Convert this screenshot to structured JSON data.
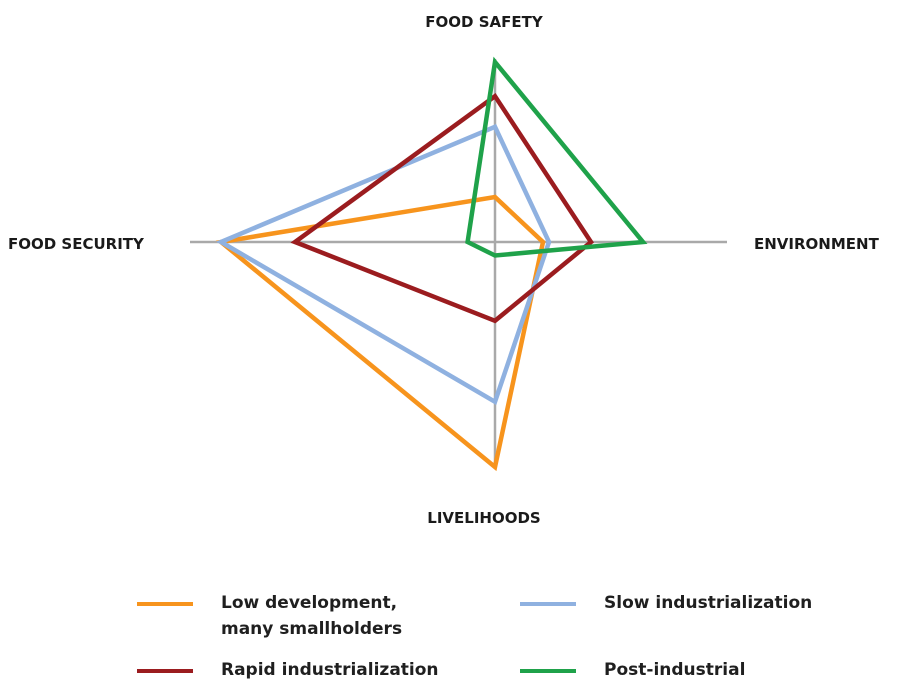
{
  "chart_data": {
    "type": "radar",
    "axes": [
      "FOOD SAFETY",
      "ENVIRONMENT",
      "LIVELIHOODS",
      "FOOD SECURITY"
    ],
    "range": [
      0,
      1
    ],
    "series": [
      {
        "name": "Low development,\nmany smallholders",
        "color": "#f7941d",
        "values": [
          0.25,
          0.24,
          1.0,
          1.0
        ]
      },
      {
        "name": "Slow industrialization",
        "color": "#8fb1e0",
        "values": [
          0.64,
          0.27,
          0.71,
          1.0
        ]
      },
      {
        "name": "Rapid industrialization",
        "color": "#9b1c1f",
        "values": [
          0.81,
          0.48,
          0.35,
          0.73
        ]
      },
      {
        "name": "Post-industrial",
        "color": "#1fa24a",
        "values": [
          1.0,
          0.74,
          0.06,
          0.1
        ]
      }
    ]
  }
}
